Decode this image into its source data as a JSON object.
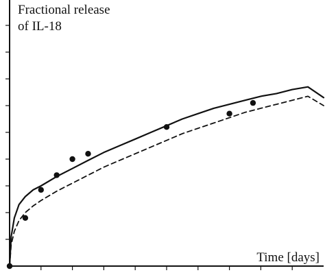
{
  "chart_data": {
    "type": "line",
    "ylabel_lines": [
      "Fractional release",
      "of IL-18"
    ],
    "xlabel": "Time [days]",
    "xlim": [
      0,
      20
    ],
    "ylim": [
      0,
      10
    ],
    "x_ticks": [
      0,
      2,
      4,
      6,
      8,
      10,
      12,
      14,
      16,
      18,
      20
    ],
    "y_ticks": [
      0,
      1,
      2,
      3,
      4,
      5,
      6,
      7,
      8,
      9,
      10
    ],
    "grid": false,
    "legend": "none",
    "series": [
      {
        "style": "solid",
        "color": "#111111",
        "x": [
          0,
          0.1,
          0.3,
          0.6,
          1,
          1.5,
          2,
          3,
          4,
          5,
          6,
          7,
          8,
          9,
          10,
          11,
          12,
          13,
          14,
          15,
          16,
          17,
          18,
          19,
          20
        ],
        "y": [
          0,
          1.1,
          1.8,
          2.3,
          2.6,
          2.85,
          3.0,
          3.35,
          3.65,
          3.95,
          4.25,
          4.5,
          4.75,
          5.0,
          5.25,
          5.5,
          5.7,
          5.9,
          6.05,
          6.2,
          6.35,
          6.45,
          6.6,
          6.7,
          6.3
        ]
      },
      {
        "style": "dashed",
        "color": "#111111",
        "x": [
          0,
          0.1,
          0.3,
          0.6,
          1,
          1.5,
          2,
          3,
          4,
          5,
          6,
          7,
          8,
          9,
          10,
          11,
          12,
          13,
          14,
          15,
          16,
          17,
          18,
          19,
          20
        ],
        "y": [
          0,
          0.8,
          1.3,
          1.7,
          2.0,
          2.25,
          2.45,
          2.8,
          3.1,
          3.4,
          3.7,
          3.95,
          4.2,
          4.45,
          4.7,
          4.95,
          5.15,
          5.35,
          5.55,
          5.75,
          5.9,
          6.05,
          6.2,
          6.35,
          6.0
        ]
      },
      {
        "style": "markers",
        "color": "#111111",
        "x": [
          0,
          1,
          2,
          3,
          4,
          5,
          10,
          14,
          15.5
        ],
        "y": [
          0,
          1.8,
          2.85,
          3.4,
          4.0,
          4.2,
          5.2,
          5.7,
          6.1
        ]
      }
    ]
  }
}
